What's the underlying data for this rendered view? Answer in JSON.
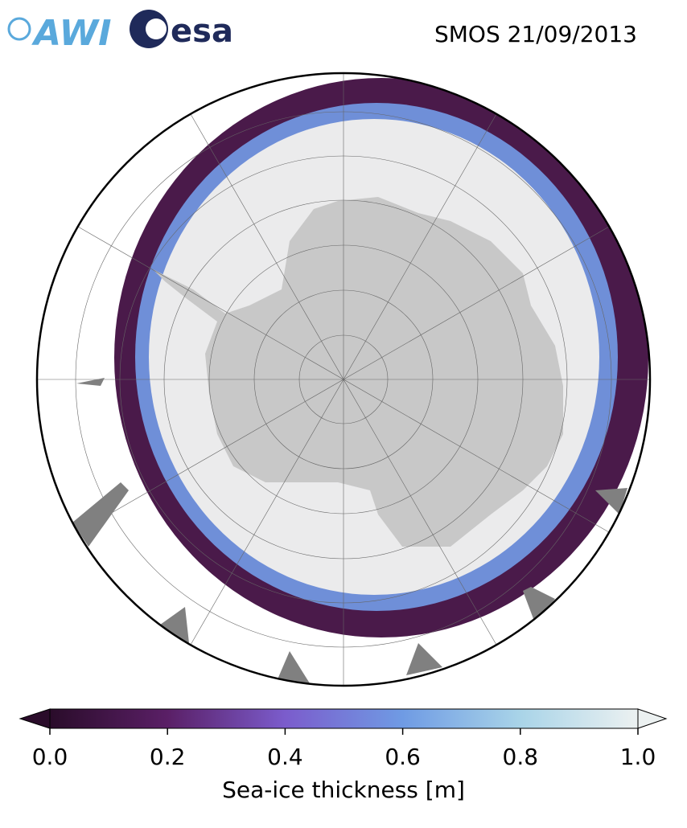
{
  "header": {
    "logos": [
      "AWI",
      "esa"
    ],
    "title": "SMOS 21/09/2013"
  },
  "colorbar": {
    "label": "Sea-ice thickness [m]",
    "lim": [
      0,
      1
    ],
    "ticks": [
      {
        "value": 0,
        "label": "0.0"
      },
      {
        "value": 0.2,
        "label": "0.2"
      },
      {
        "value": 0.4,
        "label": "0.4"
      },
      {
        "value": 0.6,
        "label": "0.6"
      },
      {
        "value": 0.8,
        "label": "0.8"
      },
      {
        "value": 1,
        "label": "1.0"
      }
    ],
    "colors": [
      "#2a0c2a",
      "#5a1f66",
      "#7b5ccc",
      "#6f9be4",
      "#a9d4e8",
      "#ecf1f1"
    ]
  }
}
